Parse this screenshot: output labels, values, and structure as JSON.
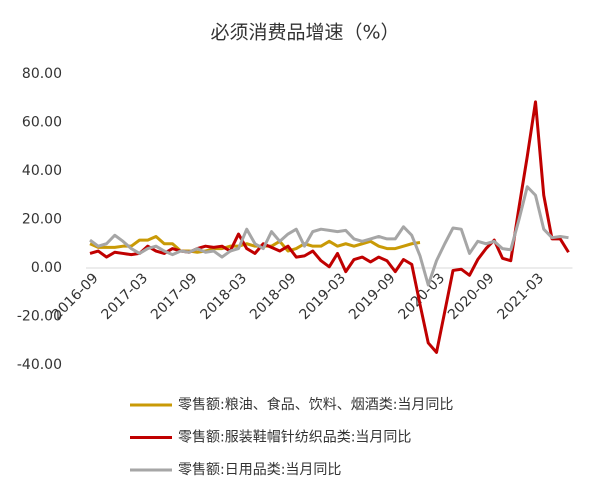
{
  "chart_data": {
    "type": "line",
    "title": "必须消费品增速（%）",
    "categories": [
      "2016-09",
      null,
      null,
      null,
      null,
      null,
      "2017-03",
      null,
      null,
      null,
      null,
      null,
      "2017-09",
      null,
      null,
      null,
      null,
      null,
      "2018-03",
      null,
      null,
      null,
      null,
      null,
      "2018-09",
      null,
      null,
      null,
      null,
      null,
      "2019-03",
      null,
      null,
      null,
      null,
      null,
      "2019-09",
      null,
      null,
      null,
      null,
      null,
      "2020-03",
      null,
      null,
      null,
      null,
      null,
      "2020-09",
      null,
      null,
      null,
      null,
      null,
      "2021-03",
      null,
      null,
      null,
      null
    ],
    "ylim": [
      -40,
      80
    ],
    "yticks": [
      {
        "value": -40,
        "label": "-40.00"
      },
      {
        "value": -20,
        "label": "-20.00"
      },
      {
        "value": 0,
        "label": "0.00"
      },
      {
        "value": 20,
        "label": "20.00"
      },
      {
        "value": 40,
        "label": "40.00"
      },
      {
        "value": 60,
        "label": "60.00"
      },
      {
        "value": 80,
        "label": "80.00"
      }
    ],
    "grid": false,
    "series": [
      {
        "name": "零售额:粮油、食品、饮料、烟酒类:当月同比",
        "color": "#c99a06",
        "values": [
          10,
          8.5,
          8.5,
          8.5,
          9,
          9,
          11.5,
          11.5,
          13,
          10,
          10,
          7,
          7,
          6.5,
          7,
          8,
          8,
          9,
          9,
          10,
          9,
          9,
          9,
          11,
          7,
          8,
          10,
          9,
          9,
          11,
          9,
          10,
          9,
          10,
          11,
          9,
          8,
          8,
          9,
          10,
          10.5,
          null,
          null,
          null,
          null,
          null,
          null,
          null,
          null,
          null,
          null,
          null,
          null,
          null,
          null,
          null,
          null,
          null,
          null
        ]
      },
      {
        "name": "零售额:服装鞋帽针纺织品类:当月同比",
        "color": "#c00000",
        "values": [
          6,
          7,
          4.5,
          6.5,
          6,
          5.5,
          6,
          9,
          7,
          6,
          8,
          7,
          6.5,
          8,
          9,
          8.5,
          9,
          7,
          14,
          8,
          6,
          10,
          8.5,
          7,
          9,
          4.5,
          5,
          7,
          3,
          0.5,
          6,
          -1.5,
          3.5,
          4.5,
          2.5,
          4.5,
          3,
          -1.5,
          3.5,
          1.5,
          -15,
          -30.9,
          -34.8,
          -18,
          -1,
          -0.5,
          -3,
          3.5,
          8,
          11.5,
          4,
          3,
          25,
          46,
          68.5,
          30,
          12,
          12,
          6.5
        ]
      },
      {
        "name": "零售额:日用品类:当月同比",
        "color": "#a6a6a6",
        "values": [
          11.5,
          9,
          10,
          13.5,
          11,
          8,
          6,
          8,
          9,
          7,
          5.5,
          7,
          6.5,
          8,
          6.5,
          7,
          4.5,
          7,
          8,
          16,
          10,
          8,
          15,
          11,
          14,
          16,
          9,
          15,
          16,
          15.5,
          15,
          15.5,
          12,
          11,
          12,
          13,
          12,
          12,
          17,
          13.5,
          5,
          -7,
          3,
          10,
          16.5,
          16,
          6,
          11,
          10,
          11,
          8,
          7.5,
          20,
          33.5,
          30,
          16,
          12.5,
          13,
          12.5
        ]
      }
    ]
  }
}
